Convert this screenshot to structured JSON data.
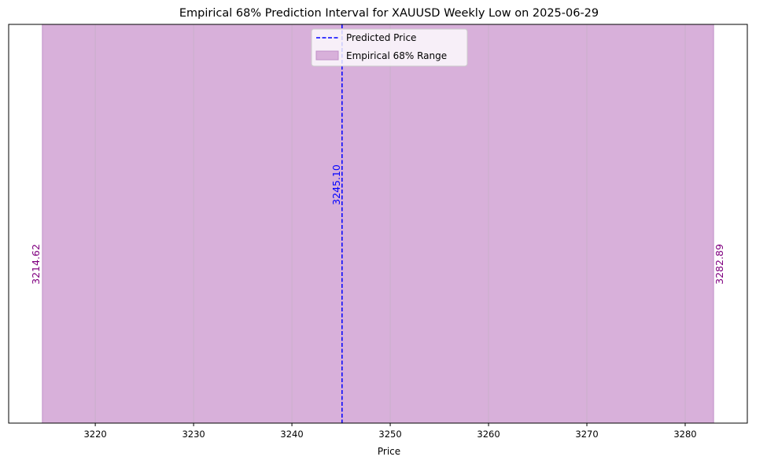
{
  "chart_data": {
    "type": "line",
    "title": "Empirical 68% Prediction Interval for XAUUSD Weekly Low on 2025-06-29",
    "xlabel": "Price",
    "ylabel": "",
    "xlim": [
      3211.19,
      3286.32
    ],
    "x_ticks": [
      3220,
      3230,
      3240,
      3250,
      3260,
      3270,
      3280
    ],
    "grid": true,
    "grid_axis": "x",
    "legend_position": "upper-center",
    "predicted": {
      "name": "Predicted Price",
      "value": 3245.1,
      "label": "3245.10",
      "color": "#0000ff",
      "style": "dashed"
    },
    "range": {
      "name": "Empirical 68% Range",
      "low": 3214.62,
      "high": 3282.89,
      "low_label": "3214.62",
      "high_label": "3282.89",
      "fill_color": "#d8b0da",
      "edge_color": "#c090c8",
      "label_color": "#800080"
    }
  }
}
